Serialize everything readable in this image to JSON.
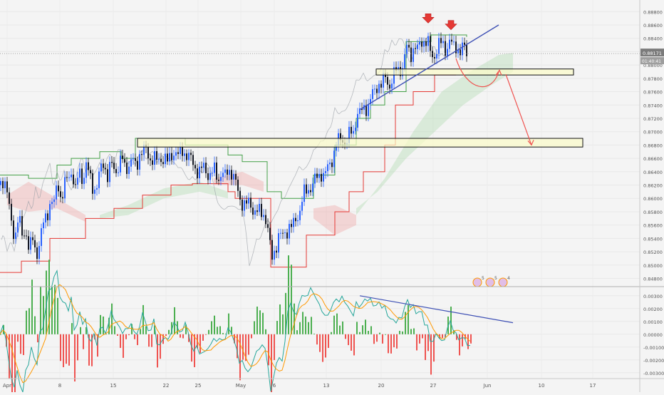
{
  "chart_data": [
    {
      "panel": "price",
      "type": "candlestick",
      "title": "",
      "y_ticks": [
        "0.88800",
        "0.88600",
        "0.88400",
        "0.88200",
        "0.88000",
        "0.87800",
        "0.87600",
        "0.87400",
        "0.87200",
        "0.87000",
        "0.86800",
        "0.86600",
        "0.86400",
        "0.86200",
        "0.86000",
        "0.85800",
        "0.85600",
        "0.85400",
        "0.85200",
        "0.85000",
        "0.84800"
      ],
      "ylim": [
        0.8472,
        0.8891
      ],
      "last_price": "0.88171",
      "countdown": "01:40:41",
      "series": [
        {
          "name": "",
          "points": [
            [
              0,
              0.862
            ],
            [
              5,
              0.8635
            ],
            [
              10,
              0.86
            ],
            [
              15,
              0.856
            ],
            [
              20,
              0.8545
            ],
            [
              25,
              0.8575
            ],
            [
              30,
              0.854
            ],
            [
              35,
              0.8555
            ],
            [
              40,
              0.8525
            ],
            [
              45,
              0.8535
            ],
            [
              50,
              0.8515
            ],
            [
              55,
              0.854
            ],
            [
              60,
              0.856
            ],
            [
              65,
              0.8575
            ],
            [
              70,
              0.86
            ],
            [
              75,
              0.859
            ],
            [
              80,
              0.8625
            ],
            [
              85,
              0.86
            ],
            [
              90,
              0.862
            ],
            [
              95,
              0.863
            ],
            [
              100,
              0.8645
            ],
            [
              105,
              0.861
            ],
            [
              110,
              0.864
            ],
            [
              115,
              0.863
            ],
            [
              120,
              0.865
            ],
            [
              125,
              0.863
            ],
            [
              130,
              0.8615
            ],
            [
              135,
              0.862
            ],
            [
              140,
              0.864
            ],
            [
              145,
              0.8655
            ],
            [
              150,
              0.8635
            ],
            [
              155,
              0.865
            ],
            [
              160,
              0.864
            ],
            [
              165,
              0.865
            ],
            [
              170,
              0.866
            ],
            [
              175,
              0.864
            ],
            [
              180,
              0.8655
            ],
            [
              185,
              0.866
            ],
            [
              190,
              0.864
            ],
            [
              195,
              0.867
            ],
            [
              200,
              0.8675
            ],
            [
              205,
              0.8665
            ],
            [
              210,
              0.866
            ],
            [
              215,
              0.8665
            ],
            [
              220,
              0.865
            ],
            [
              225,
              0.866
            ],
            [
              230,
              0.8665
            ],
            [
              235,
              0.865
            ],
            [
              240,
              0.8665
            ],
            [
              245,
              0.8675
            ],
            [
              250,
              0.866
            ],
            [
              255,
              0.867
            ],
            [
              260,
              0.867
            ],
            [
              265,
              0.866
            ],
            [
              270,
              0.865
            ],
            [
              275,
              0.8645
            ],
            [
              280,
              0.864
            ],
            [
              285,
              0.8645
            ],
            [
              290,
              0.864
            ],
            [
              295,
              0.8635
            ],
            [
              300,
              0.864
            ],
            [
              305,
              0.863
            ],
            [
              310,
              0.864
            ],
            [
              315,
              0.863
            ],
            [
              320,
              0.8645
            ],
            [
              325,
              0.864
            ],
            [
              330,
              0.862
            ],
            [
              335,
              0.86
            ],
            [
              340,
              0.8595
            ],
            [
              345,
              0.859
            ],
            [
              350,
              0.859
            ],
            [
              355,
              0.8585
            ],
            [
              360,
              0.858
            ],
            [
              365,
              0.8575
            ],
            [
              370,
              0.858
            ],
            [
              375,
              0.8555
            ],
            [
              380,
              0.8505
            ],
            [
              385,
              0.8525
            ],
            [
              390,
              0.8545
            ],
            [
              395,
              0.854
            ],
            [
              400,
              0.855
            ],
            [
              405,
              0.856
            ],
            [
              410,
              0.8555
            ],
            [
              415,
              0.857
            ],
            [
              420,
              0.8585
            ],
            [
              425,
              0.8605
            ],
            [
              430,
              0.861
            ],
            [
              435,
              0.862
            ],
            [
              440,
              0.8625
            ],
            [
              445,
              0.863
            ],
            [
              450,
              0.864
            ],
            [
              455,
              0.8635
            ],
            [
              460,
              0.8645
            ],
            [
              465,
              0.866
            ],
            [
              470,
              0.868
            ],
            [
              475,
              0.8685
            ],
            [
              480,
              0.869
            ],
            [
              485,
              0.8685
            ],
            [
              490,
              0.8695
            ],
            [
              495,
              0.87
            ],
            [
              500,
              0.873
            ],
            [
              505,
              0.8725
            ],
            [
              510,
              0.8735
            ],
            [
              515,
              0.874
            ],
            [
              520,
              0.875
            ],
            [
              525,
              0.876
            ],
            [
              530,
              0.8775
            ],
            [
              535,
              0.877
            ],
            [
              540,
              0.878
            ],
            [
              545,
              0.877
            ],
            [
              550,
              0.878
            ],
            [
              555,
              0.879
            ],
            [
              560,
              0.8795
            ],
            [
              565,
              0.88
            ],
            [
              570,
              0.8825
            ],
            [
              575,
              0.8815
            ],
            [
              580,
              0.883
            ],
            [
              585,
              0.882
            ],
            [
              590,
              0.8835
            ],
            [
              595,
              0.884
            ],
            [
              600,
              0.883
            ],
            [
              605,
              0.881
            ],
            [
              610,
              0.882
            ],
            [
              615,
              0.883
            ],
            [
              620,
              0.883
            ],
            [
              625,
              0.8825
            ],
            [
              630,
              0.8835
            ],
            [
              635,
              0.8825
            ],
            [
              640,
              0.883
            ],
            [
              645,
              0.882
            ],
            [
              650,
              0.8825
            ],
            [
              655,
              0.8817
            ]
          ]
        }
      ],
      "annotations": [
        "support zone 0.8785–0.8794",
        "support zone 0.8676–0.8690",
        "rising trend line",
        "two top arrows",
        "projected path down to 0.8680"
      ]
    },
    {
      "panel": "macd",
      "type": "histogram+line",
      "y_ticks": [
        "0.00300",
        "0.00200",
        "0.00100",
        "0.00000",
        "-0.00100",
        "-0.00200",
        "-0.00300"
      ],
      "ylim": [
        -0.0034,
        0.0036
      ],
      "indicator_markers": [
        "5",
        "5",
        "4"
      ]
    }
  ],
  "x_ticks": [
    {
      "label": "Apr",
      "x": 10
    },
    {
      "label": "8",
      "x": 84
    },
    {
      "label": "15",
      "x": 159
    },
    {
      "label": "22",
      "x": 233
    },
    {
      "label": "25",
      "x": 278
    },
    {
      "label": "May",
      "x": 338
    },
    {
      "label": "6",
      "x": 385
    },
    {
      "label": "13",
      "x": 458
    },
    {
      "label": "20",
      "x": 535
    },
    {
      "label": "27",
      "x": 608
    },
    {
      "label": "Jun",
      "x": 684
    },
    {
      "label": "10",
      "x": 760
    },
    {
      "label": "17",
      "x": 832
    }
  ],
  "colors": {
    "bull": "#2962ff",
    "bear": "#131722",
    "kijun": "#e53935",
    "tenkan": "#43a047",
    "zone_fill": "#fbfbc8",
    "trend": "#3f51b5",
    "arrow": "#ef5350",
    "macd_up": "#4caf50",
    "macd_down": "#ef5350",
    "cloud_green": "#a5d6a7",
    "cloud_red": "#ef9a9a"
  }
}
